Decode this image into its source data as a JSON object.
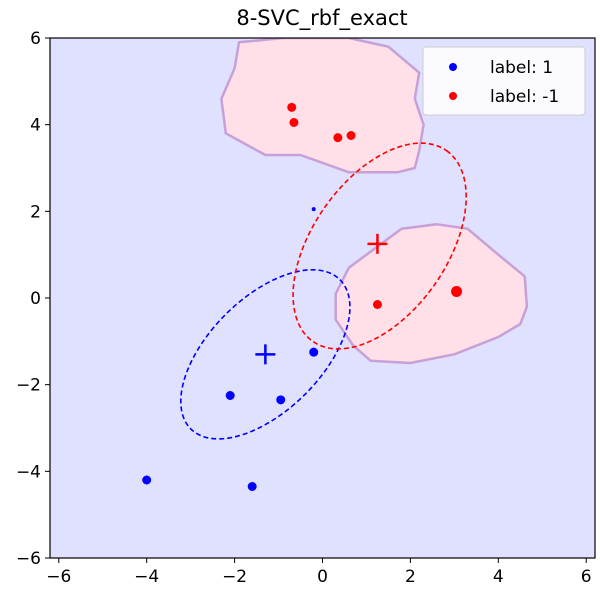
{
  "chart_data": {
    "type": "scatter",
    "title": "8-SVC_rbf_exact",
    "xlabel": "",
    "ylabel": "",
    "xlim": [
      -6.2,
      6.2
    ],
    "ylim": [
      -6,
      6
    ],
    "x_ticks": [
      -6,
      -4,
      -2,
      0,
      2,
      4,
      6
    ],
    "y_ticks": [
      -6,
      -4,
      -2,
      0,
      2,
      4,
      6
    ],
    "x_tick_labels": [
      "−6",
      "−4",
      "−2",
      "0",
      "2",
      "4",
      "6"
    ],
    "y_tick_labels": [
      "−6",
      "−4",
      "−2",
      "0",
      "2",
      "4",
      "6"
    ],
    "grid": false,
    "legend_position": "top-right",
    "background_color": "#e0e0ff",
    "region_color": "#ffe0e8",
    "region_edge_color": "#c8a0d8",
    "series": [
      {
        "name": "label: 1",
        "color": "#0000ff",
        "points": [
          {
            "x": -0.2,
            "y": -1.25,
            "size": "large"
          },
          {
            "x": -2.1,
            "y": -2.25,
            "size": "large"
          },
          {
            "x": -0.95,
            "y": -2.35,
            "size": "large"
          },
          {
            "x": -4.0,
            "y": -4.2,
            "size": "large"
          },
          {
            "x": -1.6,
            "y": -4.35,
            "size": "large"
          },
          {
            "x": -0.2,
            "y": 2.05,
            "size": "small"
          }
        ],
        "mean": {
          "x": -1.3,
          "y": -1.3
        },
        "ellipse": {
          "cx": -1.3,
          "cy": -1.3,
          "rx": 2.4,
          "ry": 1.3,
          "angle_deg": 45
        }
      },
      {
        "name": "label: -1",
        "color": "#ff0000",
        "points": [
          {
            "x": -0.7,
            "y": 4.4,
            "size": "large"
          },
          {
            "x": -0.65,
            "y": 4.05,
            "size": "large"
          },
          {
            "x": 0.35,
            "y": 3.7,
            "size": "large"
          },
          {
            "x": 0.65,
            "y": 3.75,
            "size": "large"
          },
          {
            "x": 1.25,
            "y": -0.15,
            "size": "large"
          },
          {
            "x": 3.05,
            "y": 0.15,
            "size": "xlarge"
          }
        ],
        "mean": {
          "x": 1.25,
          "y": 1.25
        },
        "ellipse": {
          "cx": 1.3,
          "cy": 1.2,
          "rx": 2.65,
          "ry": 1.55,
          "angle_deg": 55
        }
      }
    ],
    "positive_regions": [
      [
        [
          -1.9,
          5.9
        ],
        [
          -0.9,
          6.0
        ],
        [
          0.6,
          6.0
        ],
        [
          1.5,
          5.8
        ],
        [
          2.2,
          5.2
        ],
        [
          2.1,
          4.6
        ],
        [
          2.3,
          4.0
        ],
        [
          2.2,
          3.4
        ],
        [
          2.1,
          3.0
        ],
        [
          1.7,
          2.9
        ],
        [
          0.6,
          2.9
        ],
        [
          -0.5,
          3.3
        ],
        [
          -1.3,
          3.3
        ],
        [
          -2.2,
          3.8
        ],
        [
          -2.3,
          4.6
        ],
        [
          -2.0,
          5.3
        ]
      ],
      [
        [
          1.2,
          1.15
        ],
        [
          1.8,
          1.6
        ],
        [
          2.6,
          1.7
        ],
        [
          3.3,
          1.6
        ],
        [
          4.0,
          1.0
        ],
        [
          4.6,
          0.5
        ],
        [
          4.65,
          -0.2
        ],
        [
          4.5,
          -0.6
        ],
        [
          4.0,
          -0.9
        ],
        [
          3.0,
          -1.3
        ],
        [
          2.0,
          -1.5
        ],
        [
          1.1,
          -1.45
        ],
        [
          0.7,
          -1.1
        ],
        [
          0.3,
          -0.5
        ],
        [
          0.3,
          0.1
        ],
        [
          0.6,
          0.7
        ]
      ]
    ]
  }
}
